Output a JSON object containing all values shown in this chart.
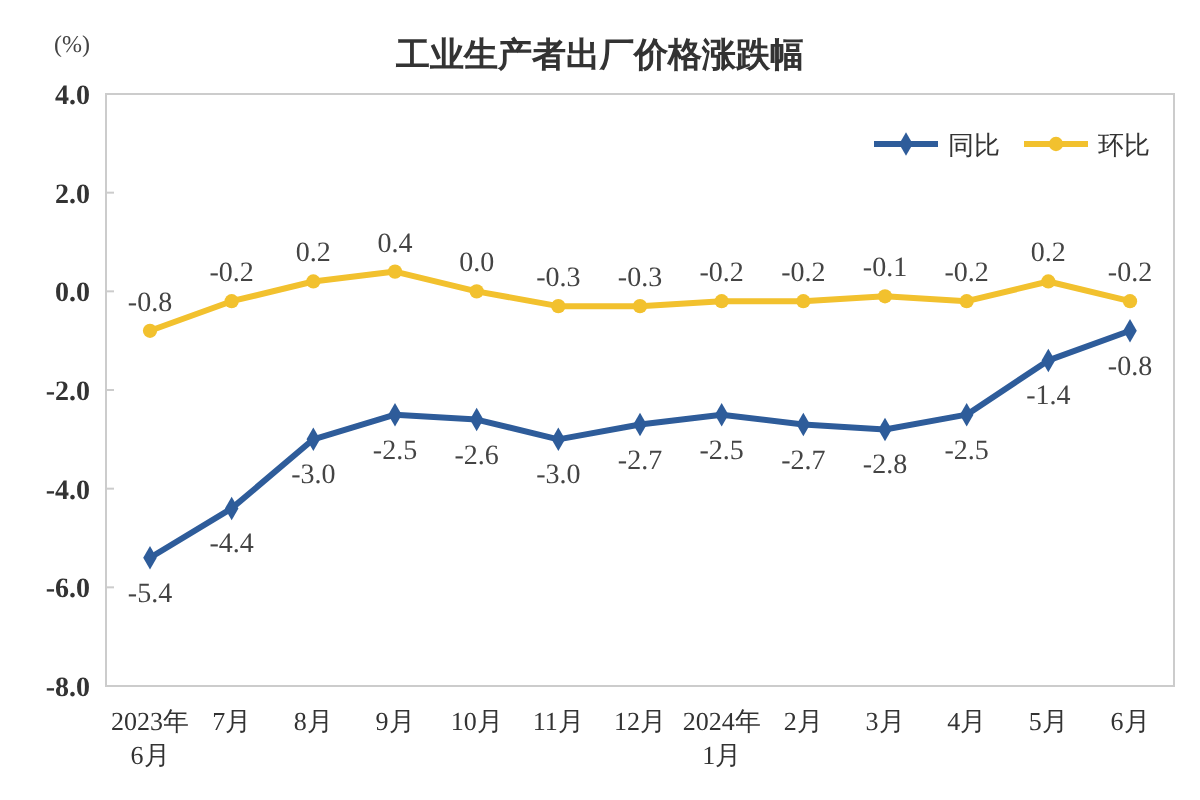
{
  "chart_data": {
    "type": "line",
    "title": "工业生产者出厂价格涨跌幅",
    "ylabel": "(%)",
    "categories": [
      "2023年\n6月",
      "7月",
      "8月",
      "9月",
      "10月",
      "11月",
      "12月",
      "2024年\n1月",
      "2月",
      "3月",
      "4月",
      "5月",
      "6月"
    ],
    "series": [
      {
        "name": "同比",
        "color": "#2e5c9a",
        "marker": "diamond",
        "values": [
          -5.4,
          -4.4,
          -3.0,
          -2.5,
          -2.6,
          -3.0,
          -2.7,
          -2.5,
          -2.7,
          -2.8,
          -2.5,
          -1.4,
          -0.8
        ],
        "value_labels": [
          "-5.4",
          "-4.4",
          "-3.0",
          "-2.5",
          "-2.6",
          "-3.0",
          "-2.7",
          "-2.5",
          "-2.7",
          "-2.8",
          "-2.5",
          "-1.4",
          "-0.8"
        ]
      },
      {
        "name": "环比",
        "color": "#f2c12e",
        "marker": "circle",
        "values": [
          -0.8,
          -0.2,
          0.2,
          0.4,
          0.0,
          -0.3,
          -0.3,
          -0.2,
          -0.2,
          -0.1,
          -0.2,
          0.2,
          -0.2
        ],
        "value_labels": [
          "-0.8",
          "-0.2",
          "0.2",
          "0.4",
          "0.0",
          "-0.3",
          "-0.3",
          "-0.2",
          "-0.2",
          "-0.1",
          "-0.2",
          "0.2",
          "-0.2"
        ]
      }
    ],
    "ylim": [
      -8,
      4
    ],
    "yticks": [
      {
        "value": 4,
        "label": "4.0"
      },
      {
        "value": 2,
        "label": "2.0"
      },
      {
        "value": 0,
        "label": "0.0"
      },
      {
        "value": -2,
        "label": "-2.0"
      },
      {
        "value": -4,
        "label": "-4.0"
      },
      {
        "value": -6,
        "label": "-6.0"
      },
      {
        "value": -8,
        "label": "-8.0"
      }
    ],
    "grid": false,
    "legend": "top right",
    "line_style": "solid"
  }
}
